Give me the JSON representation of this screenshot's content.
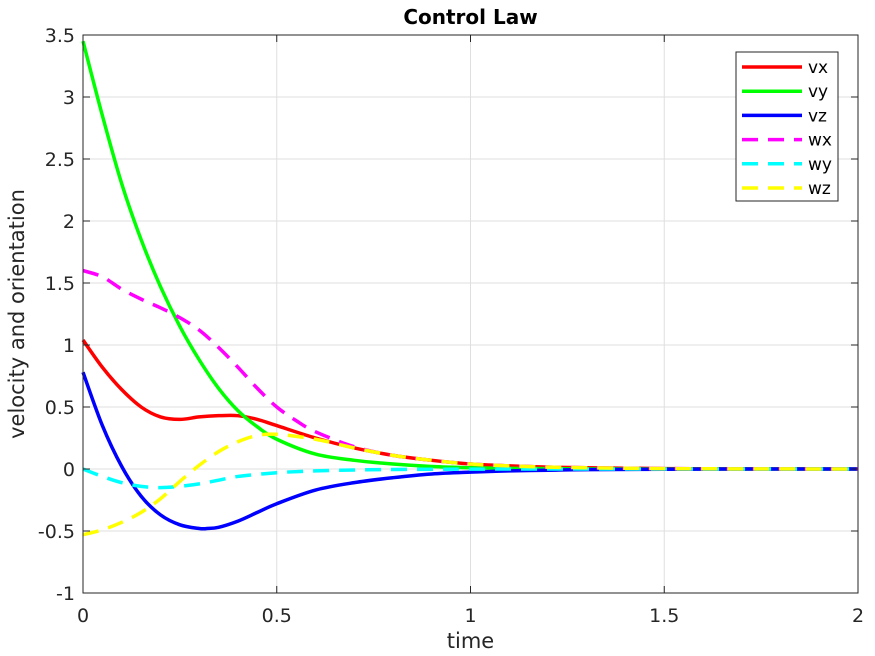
{
  "chart_data": {
    "type": "line",
    "title": "Control Law",
    "xlabel": "time",
    "ylabel": "velocity and orientation",
    "xlim": [
      0,
      2
    ],
    "ylim": [
      -1,
      3.5
    ],
    "xticks": [
      0,
      0.5,
      1,
      1.5,
      2
    ],
    "xtick_labels": [
      "0",
      "0.5",
      "1",
      "1.5",
      "2"
    ],
    "yticks": [
      -1,
      -0.5,
      0,
      0.5,
      1,
      1.5,
      2,
      2.5,
      3,
      3.5
    ],
    "ytick_labels": [
      "-1",
      "-0.5",
      "0",
      "0.5",
      "1",
      "1.5",
      "2",
      "2.5",
      "3",
      "3.5"
    ],
    "grid": true,
    "legend_position": "top-right",
    "series": [
      {
        "name": "vx",
        "color": "#ff0000",
        "style": "solid",
        "x": [
          0,
          0.05,
          0.1,
          0.15,
          0.2,
          0.25,
          0.3,
          0.35,
          0.4,
          0.45,
          0.5,
          0.6,
          0.7,
          0.8,
          0.9,
          1.0,
          1.1,
          1.2,
          1.3,
          1.5,
          1.75,
          2.0
        ],
        "y": [
          1.04,
          0.82,
          0.64,
          0.5,
          0.42,
          0.4,
          0.42,
          0.43,
          0.43,
          0.4,
          0.35,
          0.25,
          0.17,
          0.11,
          0.07,
          0.04,
          0.025,
          0.015,
          0.01,
          0.003,
          0.001,
          0
        ]
      },
      {
        "name": "vy",
        "color": "#00ff00",
        "style": "solid",
        "x": [
          0,
          0.05,
          0.1,
          0.15,
          0.2,
          0.25,
          0.3,
          0.35,
          0.4,
          0.45,
          0.5,
          0.6,
          0.7,
          0.8,
          0.9,
          1.0,
          1.1,
          1.2,
          1.3,
          1.5,
          1.75,
          2.0
        ],
        "y": [
          3.45,
          2.85,
          2.3,
          1.85,
          1.47,
          1.15,
          0.88,
          0.65,
          0.47,
          0.34,
          0.24,
          0.12,
          0.07,
          0.04,
          0.02,
          0.01,
          0.005,
          0.003,
          0.001,
          0,
          0,
          0
        ]
      },
      {
        "name": "vz",
        "color": "#0000ff",
        "style": "solid",
        "x": [
          0,
          0.05,
          0.1,
          0.15,
          0.2,
          0.25,
          0.3,
          0.32,
          0.35,
          0.4,
          0.45,
          0.5,
          0.6,
          0.7,
          0.8,
          0.9,
          1.0,
          1.1,
          1.2,
          1.3,
          1.5,
          1.75,
          2.0
        ],
        "y": [
          0.78,
          0.35,
          0.02,
          -0.22,
          -0.37,
          -0.45,
          -0.48,
          -0.48,
          -0.47,
          -0.42,
          -0.35,
          -0.28,
          -0.17,
          -0.11,
          -0.07,
          -0.04,
          -0.025,
          -0.015,
          -0.01,
          -0.005,
          -0.002,
          0,
          0
        ]
      },
      {
        "name": "wx",
        "color": "#ff00ff",
        "style": "dashed",
        "x": [
          0,
          0.05,
          0.1,
          0.15,
          0.2,
          0.25,
          0.3,
          0.35,
          0.4,
          0.45,
          0.5,
          0.55,
          0.6,
          0.7,
          0.8,
          0.9,
          1.0,
          1.1,
          1.2,
          1.3,
          1.5,
          1.75,
          2.0
        ],
        "y": [
          1.6,
          1.55,
          1.45,
          1.37,
          1.3,
          1.22,
          1.12,
          0.98,
          0.82,
          0.65,
          0.5,
          0.39,
          0.3,
          0.18,
          0.11,
          0.07,
          0.04,
          0.025,
          0.015,
          0.01,
          0.003,
          0.001,
          0
        ]
      },
      {
        "name": "wy",
        "color": "#00ffff",
        "style": "dashed",
        "x": [
          0,
          0.05,
          0.1,
          0.15,
          0.2,
          0.25,
          0.3,
          0.35,
          0.4,
          0.5,
          0.6,
          0.7,
          0.8,
          1.0,
          1.2,
          1.5,
          2.0
        ],
        "y": [
          0.0,
          -0.06,
          -0.11,
          -0.14,
          -0.15,
          -0.14,
          -0.12,
          -0.09,
          -0.06,
          -0.03,
          -0.015,
          -0.008,
          -0.004,
          -0.001,
          0,
          0,
          0
        ]
      },
      {
        "name": "wz",
        "color": "#ffff00",
        "style": "dashed",
        "x": [
          0,
          0.05,
          0.1,
          0.15,
          0.2,
          0.25,
          0.3,
          0.35,
          0.4,
          0.45,
          0.5,
          0.6,
          0.7,
          0.8,
          0.9,
          1.0,
          1.1,
          1.2,
          1.3,
          1.5,
          1.75,
          2.0
        ],
        "y": [
          -0.53,
          -0.49,
          -0.43,
          -0.35,
          -0.24,
          -0.1,
          0.03,
          0.14,
          0.22,
          0.27,
          0.28,
          0.24,
          0.17,
          0.11,
          0.07,
          0.04,
          0.025,
          0.015,
          0.01,
          0.003,
          0.001,
          0
        ]
      }
    ]
  }
}
